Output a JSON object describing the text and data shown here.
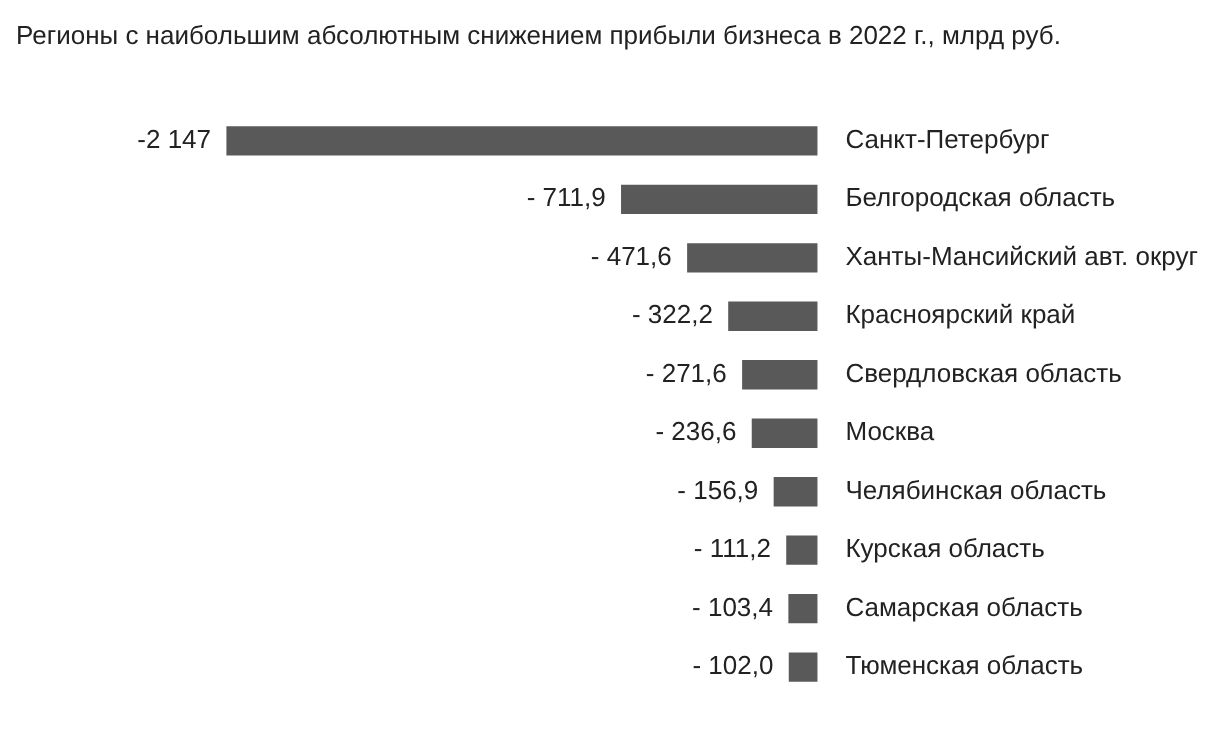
{
  "chart_data": {
    "type": "bar",
    "orientation": "horizontal",
    "title": "Регионы с наибольшим абсолютным снижением прибыли бизнеса в 2022 г., млрд руб.",
    "categories": [
      "Санкт-Петербург",
      "Белгородская область",
      "Ханты-Мансийский авт. округ",
      "Красноярский край",
      "Свердловская область",
      "Москва",
      "Челябинская область",
      "Курская область",
      "Самарская область",
      "Тюменская область"
    ],
    "values": [
      -2147,
      -711.9,
      -471.6,
      -322.2,
      -271.6,
      -236.6,
      -156.9,
      -111.2,
      -103.4,
      -102.0
    ],
    "value_labels": [
      "-2 147",
      "- 711,9",
      "- 471,6",
      "- 322,2",
      "- 271,6",
      "- 236,6",
      "- 156,9",
      "- 111,2",
      "- 103,4",
      "- 102,0"
    ],
    "color": "#595959",
    "grid": false,
    "legend": false
  }
}
